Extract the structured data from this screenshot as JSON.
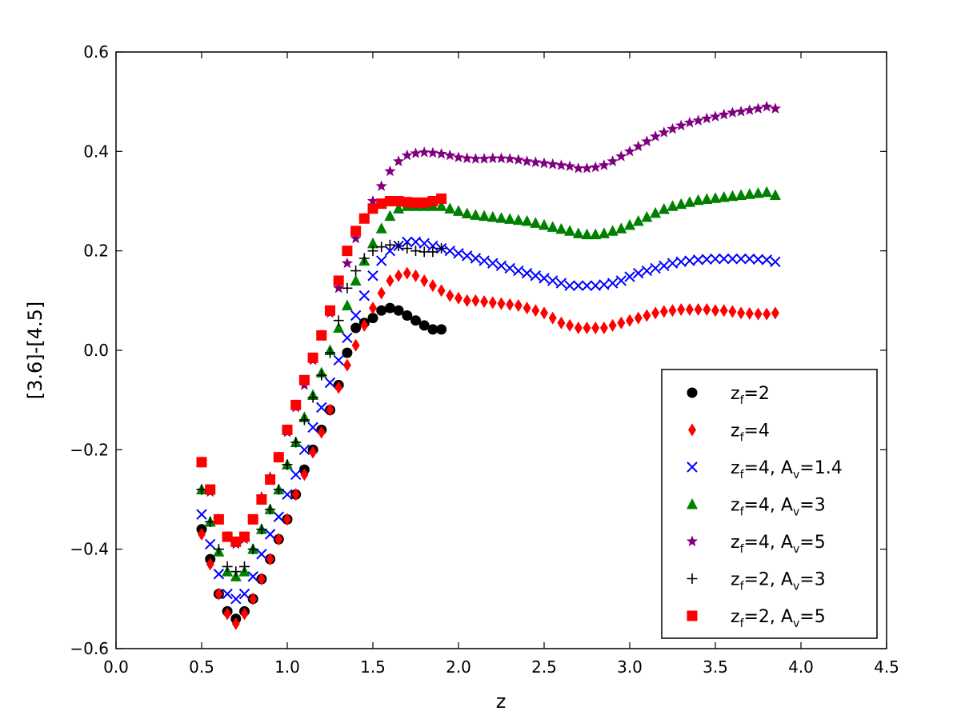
{
  "chart_data": {
    "type": "scatter",
    "title": "",
    "xlabel": "z",
    "ylabel": "[3.6]-[4.5]",
    "xlim": [
      0.0,
      4.5
    ],
    "ylim": [
      -0.6,
      0.6
    ],
    "xticks": [
      0.0,
      0.5,
      1.0,
      1.5,
      2.0,
      2.5,
      3.0,
      3.5,
      4.0,
      4.5
    ],
    "yticks": [
      -0.6,
      -0.4,
      -0.2,
      0.0,
      0.2,
      0.4,
      0.6
    ],
    "legend_position": "lower-right",
    "series": [
      {
        "name": "zf=2",
        "label_main": "z",
        "label_sub": "f",
        "label_rest": "=2",
        "av_value": "",
        "marker": "circle",
        "color": "#000000",
        "x": [
          0.5,
          0.55,
          0.6,
          0.65,
          0.7,
          0.75,
          0.8,
          0.85,
          0.9,
          0.95,
          1.0,
          1.05,
          1.1,
          1.15,
          1.2,
          1.25,
          1.3,
          1.35,
          1.4,
          1.45,
          1.5,
          1.55,
          1.6,
          1.65,
          1.7,
          1.75,
          1.8,
          1.85,
          1.9
        ],
        "y": [
          -0.36,
          -0.42,
          -0.49,
          -0.525,
          -0.54,
          -0.525,
          -0.5,
          -0.46,
          -0.42,
          -0.38,
          -0.34,
          -0.29,
          -0.24,
          -0.2,
          -0.16,
          -0.12,
          -0.07,
          -0.005,
          0.045,
          0.055,
          0.065,
          0.08,
          0.085,
          0.08,
          0.07,
          0.06,
          0.05,
          0.042,
          0.042
        ]
      },
      {
        "name": "zf=4",
        "label_main": "z",
        "label_sub": "f",
        "label_rest": "=4",
        "av_value": "",
        "marker": "diamond",
        "color": "#ff0000",
        "x": [
          0.5,
          0.55,
          0.6,
          0.65,
          0.7,
          0.75,
          0.8,
          0.85,
          0.9,
          0.95,
          1.0,
          1.05,
          1.1,
          1.15,
          1.2,
          1.25,
          1.3,
          1.35,
          1.4,
          1.45,
          1.5,
          1.55,
          1.6,
          1.65,
          1.7,
          1.75,
          1.8,
          1.85,
          1.9,
          1.95,
          2.0,
          2.05,
          2.1,
          2.15,
          2.2,
          2.25,
          2.3,
          2.35,
          2.4,
          2.45,
          2.5,
          2.55,
          2.6,
          2.65,
          2.7,
          2.75,
          2.8,
          2.85,
          2.9,
          2.95,
          3.0,
          3.05,
          3.1,
          3.15,
          3.2,
          3.25,
          3.3,
          3.35,
          3.4,
          3.45,
          3.5,
          3.55,
          3.6,
          3.65,
          3.7,
          3.75,
          3.8,
          3.85
        ],
        "y": [
          -0.37,
          -0.43,
          -0.49,
          -0.53,
          -0.55,
          -0.53,
          -0.5,
          -0.46,
          -0.42,
          -0.38,
          -0.34,
          -0.29,
          -0.25,
          -0.205,
          -0.165,
          -0.12,
          -0.075,
          -0.03,
          0.01,
          0.05,
          0.085,
          0.115,
          0.14,
          0.15,
          0.155,
          0.15,
          0.14,
          0.13,
          0.12,
          0.11,
          0.105,
          0.1,
          0.1,
          0.098,
          0.096,
          0.094,
          0.092,
          0.09,
          0.085,
          0.08,
          0.075,
          0.065,
          0.055,
          0.05,
          0.045,
          0.045,
          0.045,
          0.045,
          0.05,
          0.055,
          0.06,
          0.065,
          0.07,
          0.075,
          0.078,
          0.08,
          0.082,
          0.082,
          0.082,
          0.082,
          0.08,
          0.08,
          0.078,
          0.075,
          0.074,
          0.073,
          0.073,
          0.075
        ]
      },
      {
        "name": "zf=4, Av=1.4",
        "label_main": "z",
        "label_sub": "f",
        "label_rest": "=4, A",
        "av_value": "=1.4",
        "marker": "x",
        "color": "#0000ff",
        "x": [
          0.5,
          0.55,
          0.6,
          0.65,
          0.7,
          0.75,
          0.8,
          0.85,
          0.9,
          0.95,
          1.0,
          1.05,
          1.1,
          1.15,
          1.2,
          1.25,
          1.3,
          1.35,
          1.4,
          1.45,
          1.5,
          1.55,
          1.6,
          1.65,
          1.7,
          1.75,
          1.8,
          1.85,
          1.9,
          1.95,
          2.0,
          2.05,
          2.1,
          2.15,
          2.2,
          2.25,
          2.3,
          2.35,
          2.4,
          2.45,
          2.5,
          2.55,
          2.6,
          2.65,
          2.7,
          2.75,
          2.8,
          2.85,
          2.9,
          2.95,
          3.0,
          3.05,
          3.1,
          3.15,
          3.2,
          3.25,
          3.3,
          3.35,
          3.4,
          3.45,
          3.5,
          3.55,
          3.6,
          3.65,
          3.7,
          3.75,
          3.8,
          3.85
        ],
        "y": [
          -0.33,
          -0.39,
          -0.45,
          -0.49,
          -0.5,
          -0.49,
          -0.455,
          -0.41,
          -0.37,
          -0.335,
          -0.29,
          -0.25,
          -0.2,
          -0.155,
          -0.115,
          -0.065,
          -0.02,
          0.025,
          0.07,
          0.11,
          0.15,
          0.18,
          0.2,
          0.21,
          0.218,
          0.218,
          0.215,
          0.21,
          0.205,
          0.2,
          0.195,
          0.19,
          0.185,
          0.18,
          0.175,
          0.17,
          0.165,
          0.16,
          0.155,
          0.15,
          0.145,
          0.14,
          0.135,
          0.13,
          0.13,
          0.13,
          0.13,
          0.132,
          0.135,
          0.14,
          0.148,
          0.155,
          0.16,
          0.165,
          0.17,
          0.175,
          0.178,
          0.18,
          0.182,
          0.183,
          0.184,
          0.184,
          0.184,
          0.184,
          0.184,
          0.183,
          0.182,
          0.178
        ]
      },
      {
        "name": "zf=4, Av=3",
        "label_main": "z",
        "label_sub": "f",
        "label_rest": "=4, A",
        "av_value": "=3",
        "marker": "triangle",
        "color": "#008000",
        "x": [
          0.5,
          0.55,
          0.6,
          0.65,
          0.7,
          0.75,
          0.8,
          0.85,
          0.9,
          0.95,
          1.0,
          1.05,
          1.1,
          1.15,
          1.2,
          1.25,
          1.3,
          1.35,
          1.4,
          1.45,
          1.5,
          1.55,
          1.6,
          1.65,
          1.7,
          1.75,
          1.8,
          1.85,
          1.9,
          1.95,
          2.0,
          2.05,
          2.1,
          2.15,
          2.2,
          2.25,
          2.3,
          2.35,
          2.4,
          2.45,
          2.5,
          2.55,
          2.6,
          2.65,
          2.7,
          2.75,
          2.8,
          2.85,
          2.9,
          2.95,
          3.0,
          3.05,
          3.1,
          3.15,
          3.2,
          3.25,
          3.3,
          3.35,
          3.4,
          3.45,
          3.5,
          3.55,
          3.6,
          3.65,
          3.7,
          3.75,
          3.8,
          3.85
        ],
        "y": [
          -0.28,
          -0.345,
          -0.405,
          -0.445,
          -0.455,
          -0.445,
          -0.4,
          -0.36,
          -0.32,
          -0.28,
          -0.23,
          -0.185,
          -0.135,
          -0.09,
          -0.045,
          0.0,
          0.045,
          0.09,
          0.14,
          0.18,
          0.215,
          0.245,
          0.27,
          0.285,
          0.29,
          0.29,
          0.29,
          0.29,
          0.29,
          0.285,
          0.28,
          0.275,
          0.272,
          0.27,
          0.268,
          0.266,
          0.264,
          0.262,
          0.26,
          0.256,
          0.252,
          0.248,
          0.244,
          0.24,
          0.235,
          0.233,
          0.233,
          0.235,
          0.24,
          0.245,
          0.252,
          0.26,
          0.268,
          0.276,
          0.284,
          0.29,
          0.294,
          0.298,
          0.302,
          0.304,
          0.306,
          0.308,
          0.31,
          0.312,
          0.314,
          0.316,
          0.318,
          0.312
        ]
      },
      {
        "name": "zf=4, Av=5",
        "label_main": "z",
        "label_sub": "f",
        "label_rest": "=4, A",
        "av_value": "=5",
        "marker": "star",
        "color": "#800080",
        "x": [
          0.5,
          0.55,
          0.6,
          0.65,
          0.7,
          0.75,
          0.8,
          0.85,
          0.9,
          0.95,
          1.0,
          1.05,
          1.1,
          1.15,
          1.2,
          1.25,
          1.3,
          1.35,
          1.4,
          1.45,
          1.5,
          1.55,
          1.6,
          1.65,
          1.7,
          1.75,
          1.8,
          1.85,
          1.9,
          1.95,
          2.0,
          2.05,
          2.1,
          2.15,
          2.2,
          2.25,
          2.3,
          2.35,
          2.4,
          2.45,
          2.5,
          2.55,
          2.6,
          2.65,
          2.7,
          2.75,
          2.8,
          2.85,
          2.9,
          2.95,
          3.0,
          3.05,
          3.1,
          3.15,
          3.2,
          3.25,
          3.3,
          3.35,
          3.4,
          3.45,
          3.5,
          3.55,
          3.6,
          3.65,
          3.7,
          3.75,
          3.8,
          3.85
        ],
        "y": [
          -0.225,
          -0.285,
          -0.34,
          -0.375,
          -0.39,
          -0.38,
          -0.34,
          -0.295,
          -0.255,
          -0.215,
          -0.165,
          -0.115,
          -0.07,
          -0.02,
          0.03,
          0.075,
          0.125,
          0.175,
          0.225,
          0.265,
          0.3,
          0.33,
          0.36,
          0.38,
          0.392,
          0.396,
          0.398,
          0.397,
          0.395,
          0.392,
          0.388,
          0.386,
          0.385,
          0.385,
          0.386,
          0.386,
          0.385,
          0.383,
          0.38,
          0.378,
          0.376,
          0.374,
          0.372,
          0.37,
          0.366,
          0.366,
          0.368,
          0.372,
          0.38,
          0.39,
          0.4,
          0.41,
          0.42,
          0.43,
          0.438,
          0.445,
          0.452,
          0.458,
          0.462,
          0.466,
          0.47,
          0.474,
          0.478,
          0.48,
          0.483,
          0.486,
          0.49,
          0.486
        ]
      },
      {
        "name": "zf=2, Av=3",
        "label_main": "z",
        "label_sub": "f",
        "label_rest": "=2, A",
        "av_value": "=3",
        "marker": "plus",
        "color": "#000000",
        "x": [
          0.5,
          0.55,
          0.6,
          0.65,
          0.7,
          0.75,
          0.8,
          0.85,
          0.9,
          0.95,
          1.0,
          1.05,
          1.1,
          1.15,
          1.2,
          1.25,
          1.3,
          1.35,
          1.4,
          1.45,
          1.5,
          1.55,
          1.6,
          1.65,
          1.7,
          1.75,
          1.8,
          1.85,
          1.9
        ],
        "y": [
          -0.28,
          -0.345,
          -0.4,
          -0.435,
          -0.445,
          -0.435,
          -0.4,
          -0.36,
          -0.32,
          -0.28,
          -0.23,
          -0.185,
          -0.14,
          -0.095,
          -0.05,
          -0.005,
          0.06,
          0.125,
          0.16,
          0.185,
          0.2,
          0.208,
          0.212,
          0.21,
          0.205,
          0.2,
          0.198,
          0.198,
          0.205
        ]
      },
      {
        "name": "zf=2, Av=5",
        "label_main": "z",
        "label_sub": "f",
        "label_rest": "=2, A",
        "av_value": "=5",
        "marker": "square",
        "color": "#ff0000",
        "x": [
          0.5,
          0.55,
          0.6,
          0.65,
          0.7,
          0.75,
          0.8,
          0.85,
          0.9,
          0.95,
          1.0,
          1.05,
          1.1,
          1.15,
          1.2,
          1.25,
          1.3,
          1.35,
          1.4,
          1.45,
          1.5,
          1.55,
          1.6,
          1.65,
          1.7,
          1.75,
          1.8,
          1.85,
          1.9
        ],
        "y": [
          -0.225,
          -0.28,
          -0.34,
          -0.375,
          -0.385,
          -0.375,
          -0.34,
          -0.3,
          -0.26,
          -0.215,
          -0.16,
          -0.11,
          -0.06,
          -0.015,
          0.03,
          0.08,
          0.14,
          0.2,
          0.24,
          0.265,
          0.285,
          0.295,
          0.3,
          0.3,
          0.298,
          0.297,
          0.297,
          0.3,
          0.305
        ]
      }
    ]
  }
}
